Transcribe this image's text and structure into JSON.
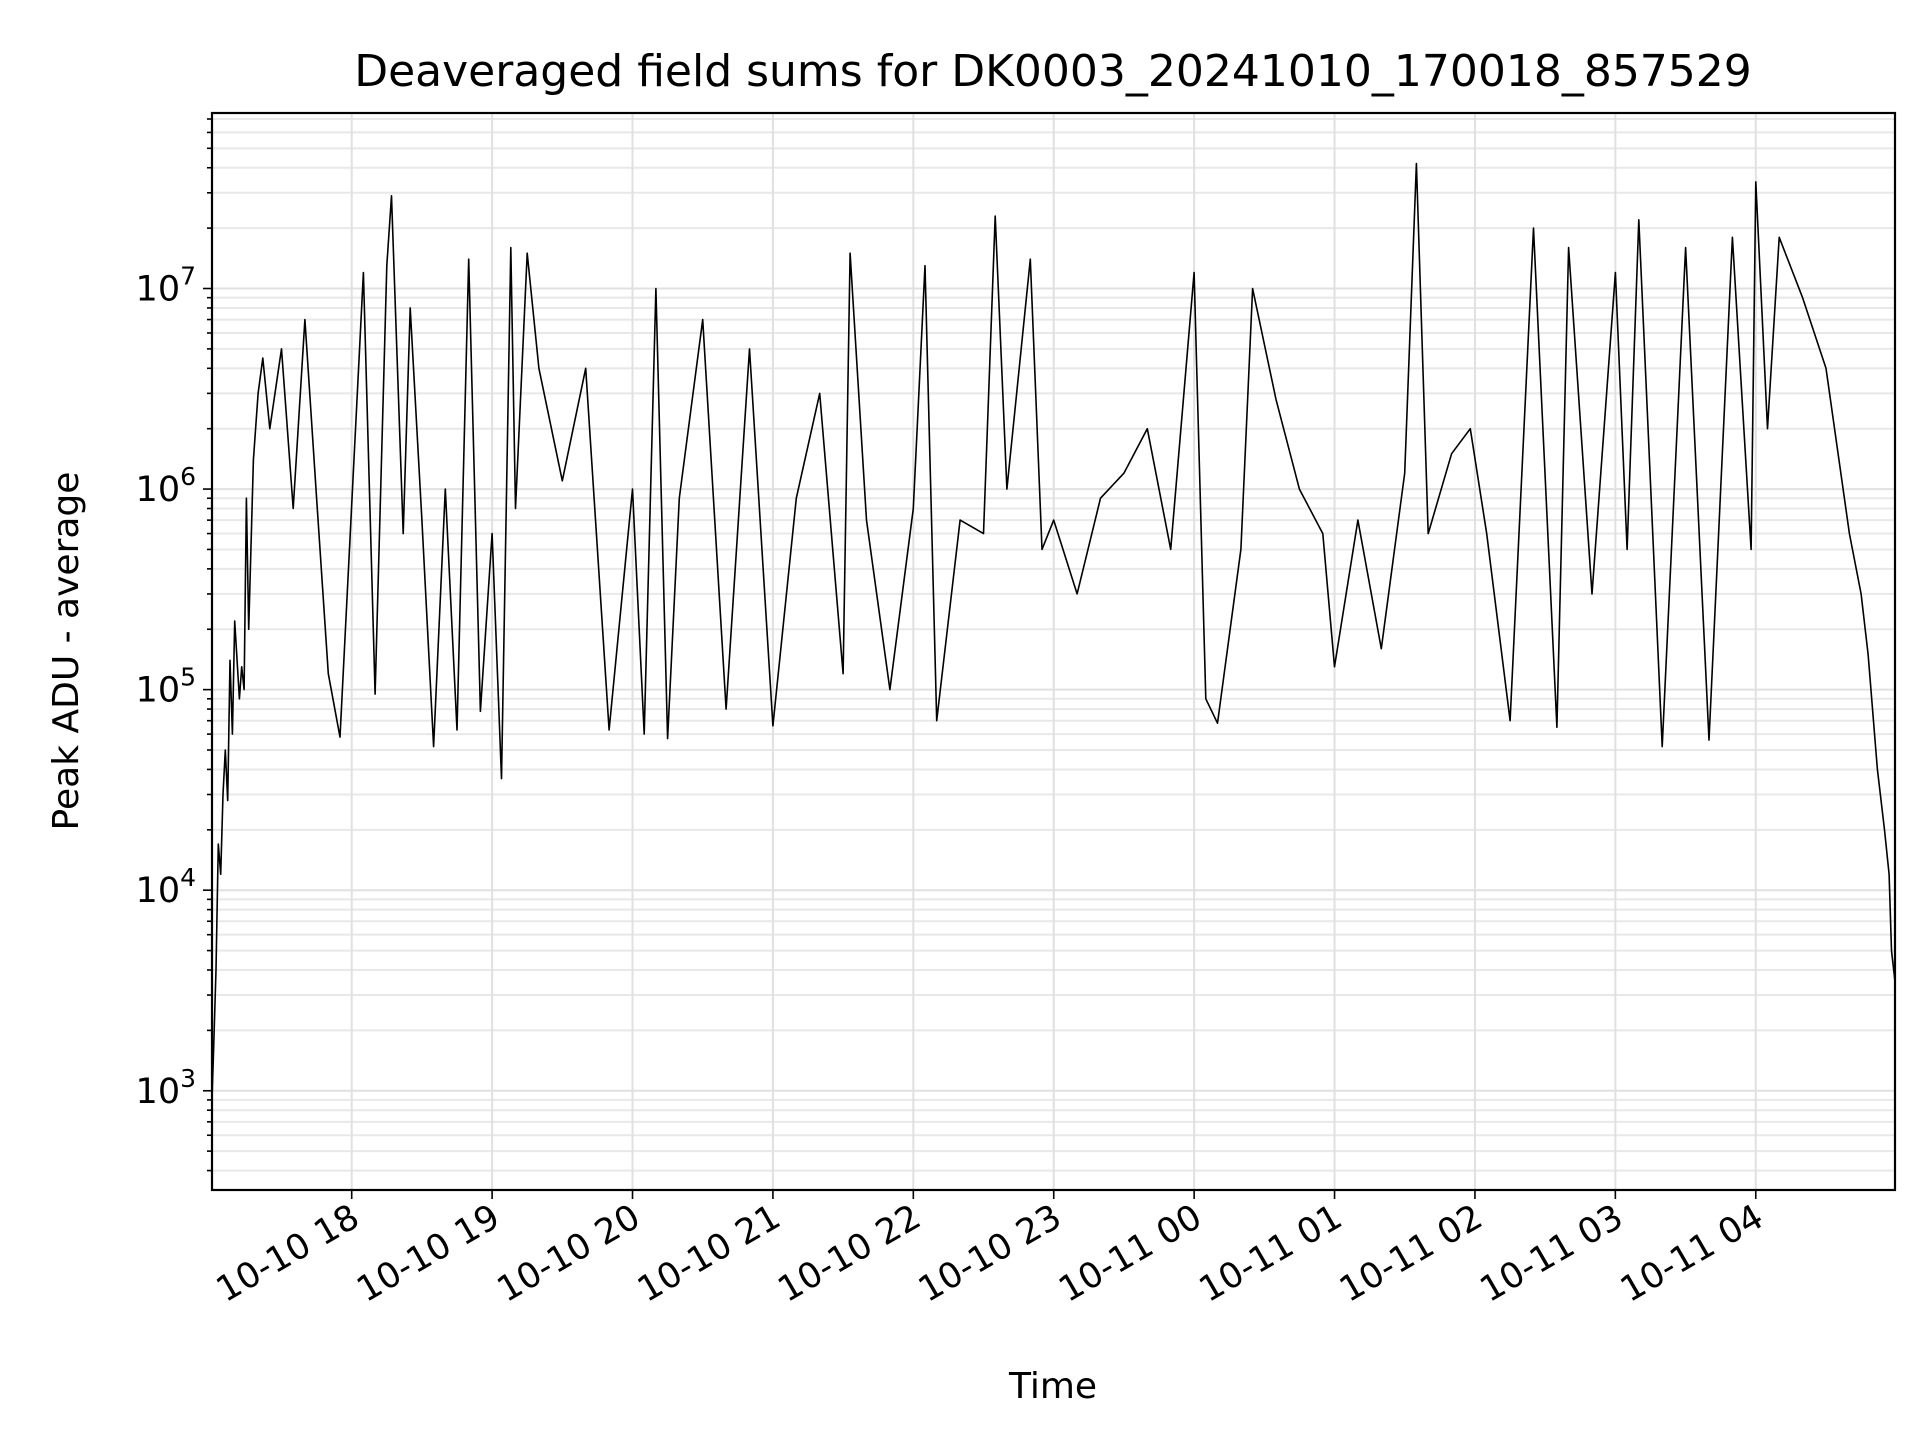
{
  "chart_data": {
    "type": "line",
    "title": "Deaveraged field sums for DK0003_20241010_170018_857529",
    "xlabel": "Time",
    "ylabel": "Peak ADU - average",
    "yscale": "log",
    "ylim": [
      320,
      75000000
    ],
    "xlim": [
      "2024-10-10 17:00:18",
      "2024-10-11 04:59:30"
    ],
    "grid": "on (major and minor)",
    "line_color": "#000000",
    "x_ticks": [
      {
        "time": "2024-10-10 18:00",
        "label": "10-10 18"
      },
      {
        "time": "2024-10-10 19:00",
        "label": "10-10 19"
      },
      {
        "time": "2024-10-10 20:00",
        "label": "10-10 20"
      },
      {
        "time": "2024-10-10 21:00",
        "label": "10-10 21"
      },
      {
        "time": "2024-10-10 22:00",
        "label": "10-10 22"
      },
      {
        "time": "2024-10-10 23:00",
        "label": "10-10 23"
      },
      {
        "time": "2024-10-11 00:00",
        "label": "10-11 00"
      },
      {
        "time": "2024-10-11 01:00",
        "label": "10-11 01"
      },
      {
        "time": "2024-10-11 02:00",
        "label": "10-11 02"
      },
      {
        "time": "2024-10-11 03:00",
        "label": "10-11 03"
      },
      {
        "time": "2024-10-11 04:00",
        "label": "10-11 04"
      }
    ],
    "y_ticks": [
      {
        "value": 1000,
        "base": "10",
        "exp": "3"
      },
      {
        "value": 10000,
        "base": "10",
        "exp": "4"
      },
      {
        "value": 100000,
        "base": "10",
        "exp": "5"
      },
      {
        "value": 1000000,
        "base": "10",
        "exp": "6"
      },
      {
        "value": 10000000,
        "base": "10",
        "exp": "7"
      }
    ],
    "series": [
      {
        "points": [
          [
            "2024-10-10 17:00:18",
            900
          ],
          [
            "2024-10-10 17:01",
            1600
          ],
          [
            "2024-10-10 17:02",
            4000
          ],
          [
            "2024-10-10 17:03",
            17000
          ],
          [
            "2024-10-10 17:04",
            12000
          ],
          [
            "2024-10-10 17:05",
            30000
          ],
          [
            "2024-10-10 17:06",
            50000
          ],
          [
            "2024-10-10 17:07",
            28000
          ],
          [
            "2024-10-10 17:08",
            140000
          ],
          [
            "2024-10-10 17:09",
            60000
          ],
          [
            "2024-10-10 17:10",
            220000
          ],
          [
            "2024-10-10 17:12",
            90000
          ],
          [
            "2024-10-10 17:13",
            130000
          ],
          [
            "2024-10-10 17:14",
            100000
          ],
          [
            "2024-10-10 17:15",
            900000
          ],
          [
            "2024-10-10 17:16",
            200000
          ],
          [
            "2024-10-10 17:18",
            1400000
          ],
          [
            "2024-10-10 17:20",
            3000000
          ],
          [
            "2024-10-10 17:22",
            4500000
          ],
          [
            "2024-10-10 17:25",
            2000000
          ],
          [
            "2024-10-10 17:30",
            5000000
          ],
          [
            "2024-10-10 17:35",
            800000
          ],
          [
            "2024-10-10 17:40",
            7000000
          ],
          [
            "2024-10-10 17:45",
            900000
          ],
          [
            "2024-10-10 17:50",
            120000
          ],
          [
            "2024-10-10 17:55",
            58000
          ],
          [
            "2024-10-10 18:05",
            12000000
          ],
          [
            "2024-10-10 18:10",
            95000
          ],
          [
            "2024-10-10 18:15",
            13000000
          ],
          [
            "2024-10-10 18:17",
            29000000
          ],
          [
            "2024-10-10 18:22",
            600000
          ],
          [
            "2024-10-10 18:25",
            8000000
          ],
          [
            "2024-10-10 18:30",
            700000
          ],
          [
            "2024-10-10 18:35",
            52000
          ],
          [
            "2024-10-10 18:40",
            1000000
          ],
          [
            "2024-10-10 18:45",
            63000
          ],
          [
            "2024-10-10 18:50",
            14000000
          ],
          [
            "2024-10-10 18:55",
            78000
          ],
          [
            "2024-10-10 19:00",
            600000
          ],
          [
            "2024-10-10 19:04",
            36000
          ],
          [
            "2024-10-10 19:08",
            16000000
          ],
          [
            "2024-10-10 19:10",
            800000
          ],
          [
            "2024-10-10 19:15",
            15000000
          ],
          [
            "2024-10-10 19:20",
            4000000
          ],
          [
            "2024-10-10 19:30",
            1100000
          ],
          [
            "2024-10-10 19:40",
            4000000
          ],
          [
            "2024-10-10 19:50",
            63000
          ],
          [
            "2024-10-10 20:00",
            1000000
          ],
          [
            "2024-10-10 20:05",
            60000
          ],
          [
            "2024-10-10 20:10",
            10000000
          ],
          [
            "2024-10-10 20:15",
            57000
          ],
          [
            "2024-10-10 20:20",
            900000
          ],
          [
            "2024-10-10 20:30",
            7000000
          ],
          [
            "2024-10-10 20:40",
            80000
          ],
          [
            "2024-10-10 20:50",
            5000000
          ],
          [
            "2024-10-10 21:00",
            66000
          ],
          [
            "2024-10-10 21:10",
            900000
          ],
          [
            "2024-10-10 21:20",
            3000000
          ],
          [
            "2024-10-10 21:30",
            120000
          ],
          [
            "2024-10-10 21:33",
            15000000
          ],
          [
            "2024-10-10 21:40",
            700000
          ],
          [
            "2024-10-10 21:50",
            100000
          ],
          [
            "2024-10-10 22:00",
            800000
          ],
          [
            "2024-10-10 22:05",
            13000000
          ],
          [
            "2024-10-10 22:10",
            70000
          ],
          [
            "2024-10-10 22:20",
            700000
          ],
          [
            "2024-10-10 22:30",
            600000
          ],
          [
            "2024-10-10 22:35",
            23000000
          ],
          [
            "2024-10-10 22:40",
            1000000
          ],
          [
            "2024-10-10 22:50",
            14000000
          ],
          [
            "2024-10-10 22:55",
            500000
          ],
          [
            "2024-10-10 23:00",
            700000
          ],
          [
            "2024-10-10 23:10",
            300000
          ],
          [
            "2024-10-10 23:20",
            900000
          ],
          [
            "2024-10-10 23:30",
            1200000
          ],
          [
            "2024-10-10 23:40",
            2000000
          ],
          [
            "2024-10-10 23:50",
            500000
          ],
          [
            "2024-10-11 00:00",
            12000000
          ],
          [
            "2024-10-11 00:05",
            90000
          ],
          [
            "2024-10-11 00:10",
            68000
          ],
          [
            "2024-10-11 00:20",
            500000
          ],
          [
            "2024-10-11 00:25",
            10000000
          ],
          [
            "2024-10-11 00:35",
            2800000
          ],
          [
            "2024-10-11 00:45",
            1000000
          ],
          [
            "2024-10-11 00:55",
            600000
          ],
          [
            "2024-10-11 01:00",
            130000
          ],
          [
            "2024-10-11 01:10",
            700000
          ],
          [
            "2024-10-11 01:20",
            160000
          ],
          [
            "2024-10-11 01:30",
            1200000
          ],
          [
            "2024-10-11 01:35",
            42000000
          ],
          [
            "2024-10-11 01:40",
            600000
          ],
          [
            "2024-10-11 01:50",
            1500000
          ],
          [
            "2024-10-11 01:58",
            2000000
          ],
          [
            "2024-10-11 02:05",
            600000
          ],
          [
            "2024-10-11 02:15",
            70000
          ],
          [
            "2024-10-11 02:25",
            20000000
          ],
          [
            "2024-10-11 02:35",
            65000
          ],
          [
            "2024-10-11 02:40",
            16000000
          ],
          [
            "2024-10-11 02:50",
            300000
          ],
          [
            "2024-10-11 03:00",
            12000000
          ],
          [
            "2024-10-11 03:05",
            500000
          ],
          [
            "2024-10-11 03:10",
            22000000
          ],
          [
            "2024-10-11 03:20",
            52000
          ],
          [
            "2024-10-11 03:30",
            16000000
          ],
          [
            "2024-10-11 03:40",
            56000
          ],
          [
            "2024-10-11 03:50",
            18000000
          ],
          [
            "2024-10-11 03:58",
            500000
          ],
          [
            "2024-10-11 04:00",
            34000000
          ],
          [
            "2024-10-11 04:05",
            2000000
          ],
          [
            "2024-10-11 04:10",
            18000000
          ],
          [
            "2024-10-11 04:20",
            9000000
          ],
          [
            "2024-10-11 04:30",
            4000000
          ],
          [
            "2024-10-11 04:40",
            600000
          ],
          [
            "2024-10-11 04:45",
            300000
          ],
          [
            "2024-10-11 04:48",
            150000
          ],
          [
            "2024-10-11 04:52",
            40000
          ],
          [
            "2024-10-11 04:55",
            20000
          ],
          [
            "2024-10-11 04:57",
            12000
          ],
          [
            "2024-10-11 04:58",
            5000
          ],
          [
            "2024-10-11 04:59:30",
            3500
          ]
        ]
      }
    ]
  }
}
